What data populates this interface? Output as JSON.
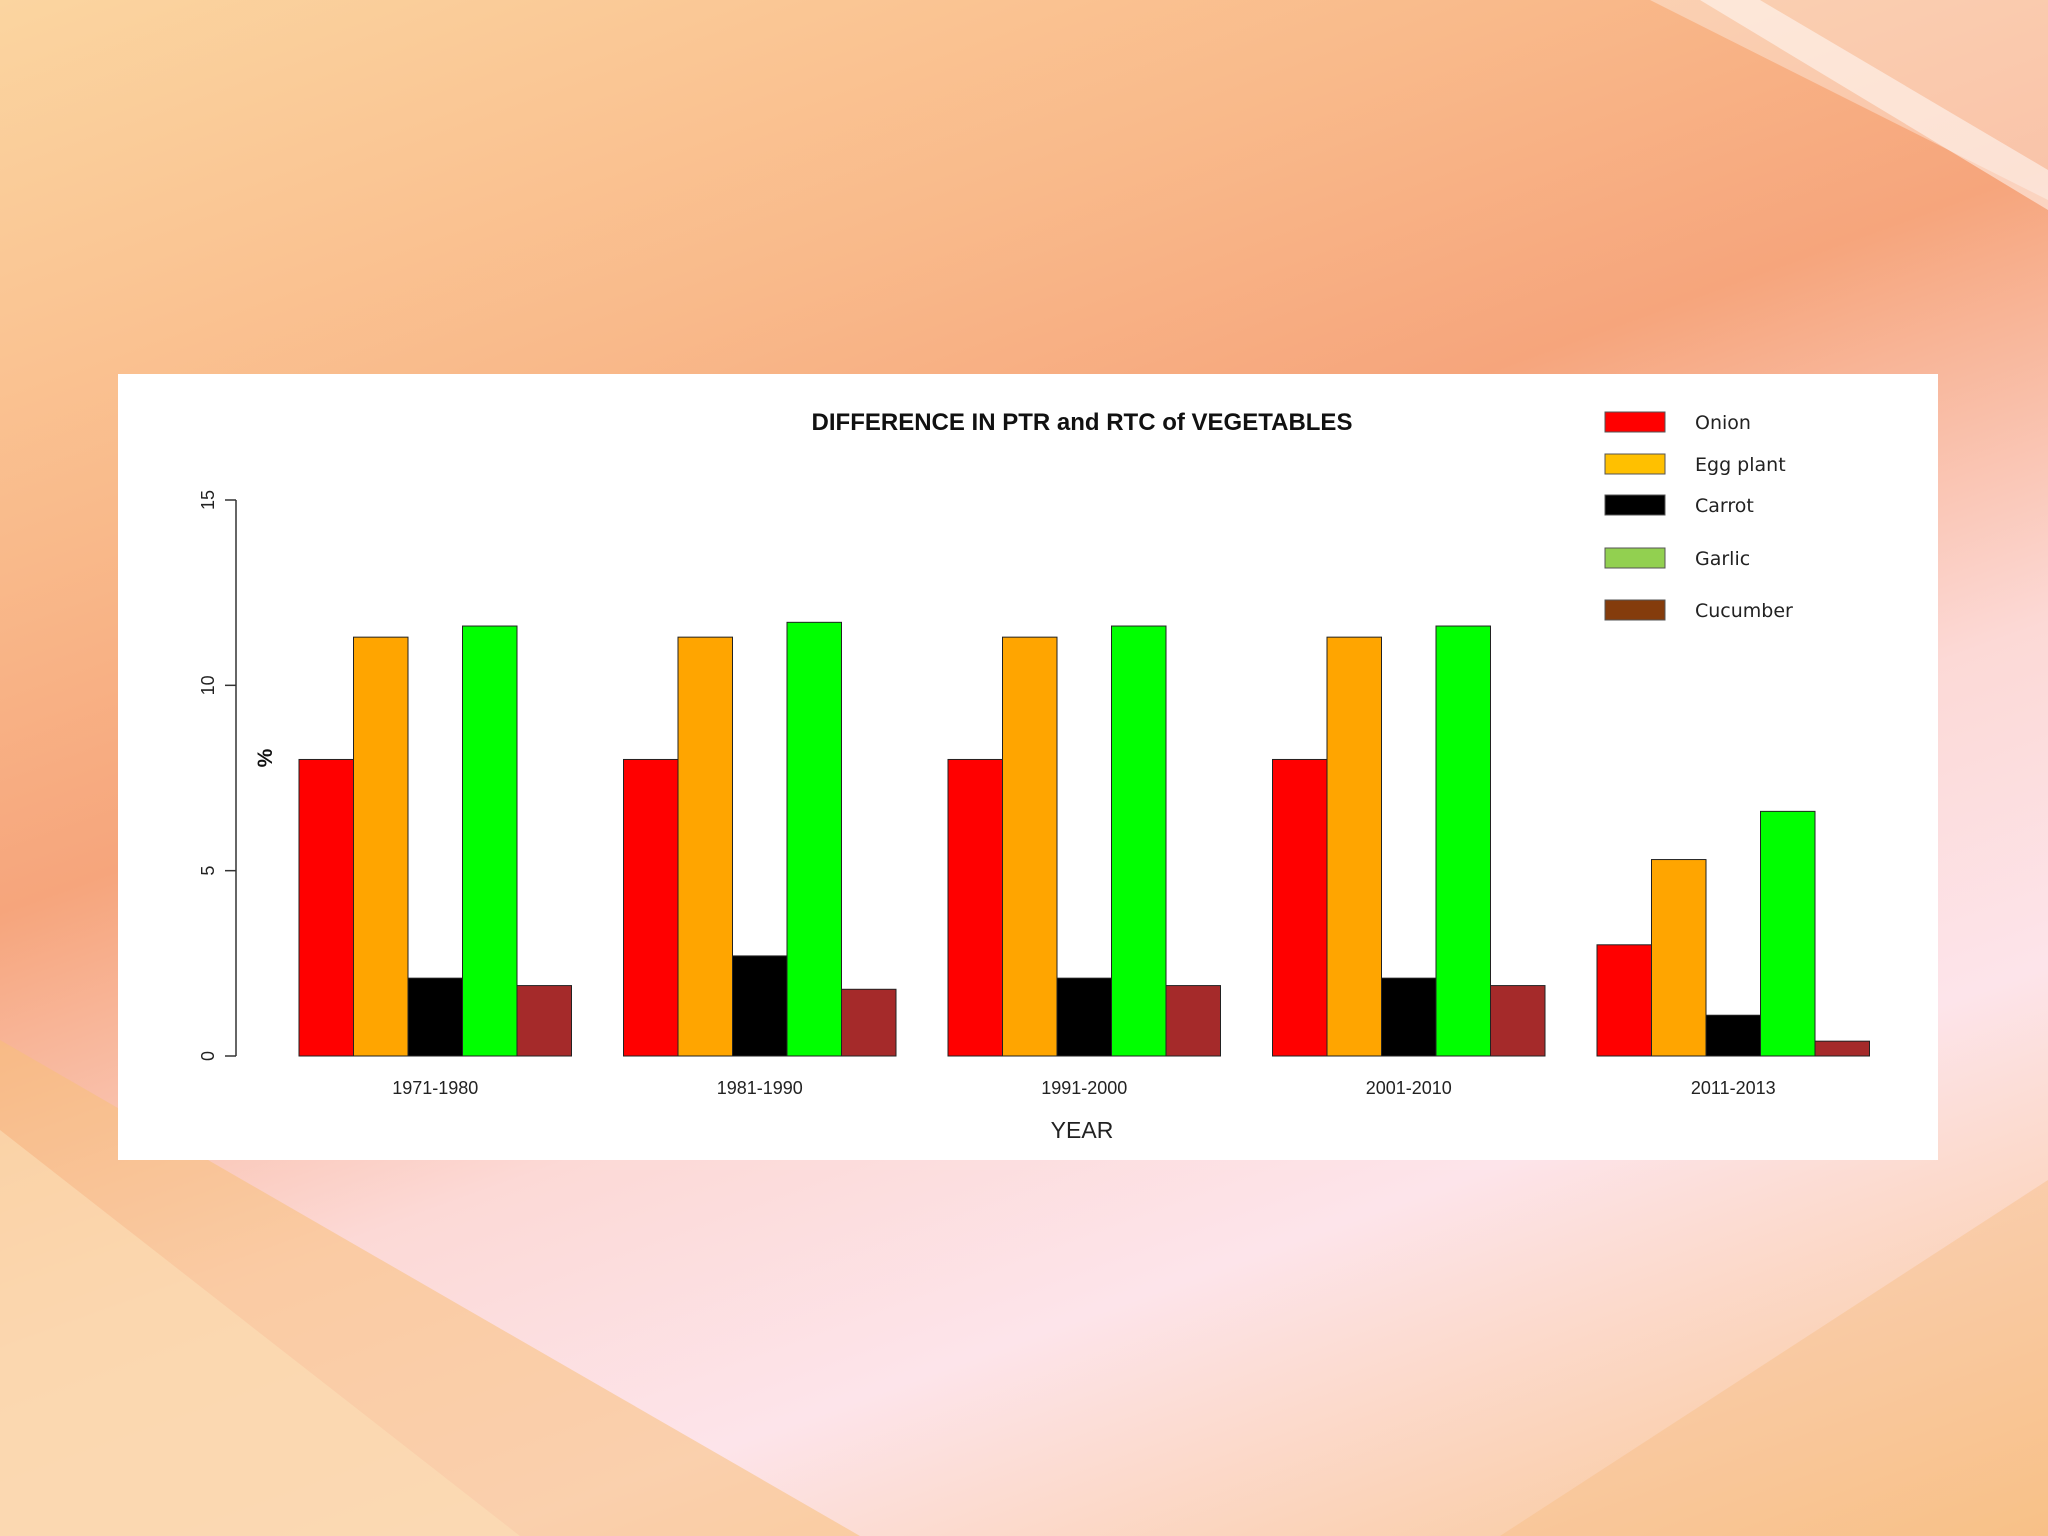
{
  "chart_data": {
    "type": "bar",
    "title": "DIFFERENCE IN PTR and RTC of VEGETABLES",
    "xlabel": "YEAR",
    "ylabel": "%",
    "ylim": [
      0,
      15
    ],
    "yticks": [
      "0",
      "5",
      "10",
      "15"
    ],
    "categories": [
      "1971-1980",
      "1981-1990",
      "1991-2000",
      "2001-2010",
      "2011-2013"
    ],
    "series": [
      {
        "name": "Onion",
        "color": "#ff0000",
        "legend_color": "#ff0000",
        "values": [
          8,
          8,
          8,
          8,
          3
        ]
      },
      {
        "name": "Egg plant",
        "color": "#ffa500",
        "legend_color": "#ffc000",
        "values": [
          11.3,
          11.3,
          11.3,
          11.3,
          5.3
        ]
      },
      {
        "name": "Carrot",
        "color": "#000000",
        "legend_color": "#000000",
        "values": [
          2.1,
          2.7,
          2.1,
          2.1,
          1.1
        ]
      },
      {
        "name": "Garlic",
        "color": "#00ff00",
        "legend_color": "#92d050",
        "values": [
          11.6,
          11.7,
          11.6,
          11.6,
          6.6
        ]
      },
      {
        "name": "Cucumber",
        "color": "#a52a2a",
        "legend_color": "#843c0c",
        "values": [
          1.9,
          1.8,
          1.9,
          1.9,
          0.4
        ]
      }
    ],
    "grid": false,
    "legend_position": "top-right"
  }
}
